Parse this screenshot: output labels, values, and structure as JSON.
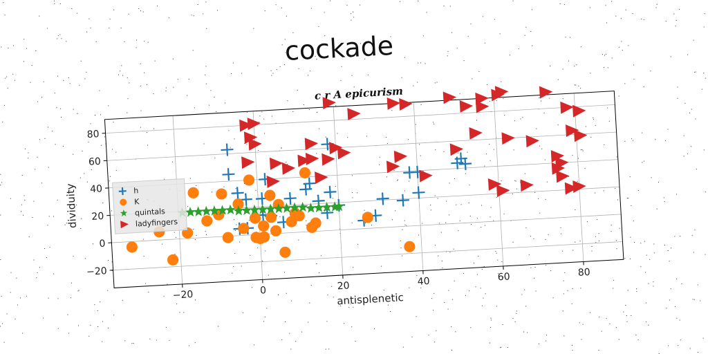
{
  "title": "cockade",
  "chart_data": {
    "type": "scatter",
    "subtitle": "c r A epicurism",
    "xlabel": "antisplenetic",
    "ylabel": "dividuity",
    "xlim": [
      -37,
      90
    ],
    "ylim": [
      -33,
      90
    ],
    "xticks": [
      -20,
      0,
      20,
      40,
      60,
      80
    ],
    "yticks": [
      -20,
      0,
      20,
      40,
      60,
      80
    ],
    "grid": true,
    "legend_position": "center-left",
    "series": [
      {
        "name": "h",
        "marker": "plus",
        "color": "#1f77b4",
        "points": [
          [
            -7,
            63
          ],
          [
            -7,
            45
          ],
          [
            18,
            63
          ],
          [
            2,
            40
          ],
          [
            1,
            26
          ],
          [
            -5,
            31
          ],
          [
            -3,
            26
          ],
          [
            12,
            31
          ],
          [
            8,
            25
          ],
          [
            13,
            35
          ],
          [
            18,
            28
          ],
          [
            15,
            22
          ],
          [
            17,
            13
          ],
          [
            26,
            6
          ],
          [
            29,
            9
          ],
          [
            20,
            18
          ],
          [
            31,
            21
          ],
          [
            36,
            19
          ],
          [
            38,
            39
          ],
          [
            40,
            39
          ],
          [
            40,
            24
          ],
          [
            50,
            44
          ],
          [
            52,
            43
          ],
          [
            51,
            47
          ],
          [
            -5,
            5
          ],
          [
            -3,
            5
          ],
          [
            1,
            14
          ],
          [
            3,
            13
          ],
          [
            6,
            8
          ]
        ]
      },
      {
        "name": "K",
        "marker": "circle",
        "color": "#ff7f0e",
        "points": [
          [
            -32,
            -4
          ],
          [
            -25,
            6
          ],
          [
            -22,
            -15
          ],
          [
            -18,
            4
          ],
          [
            -16,
            33
          ],
          [
            -13,
            12
          ],
          [
            -10,
            16
          ],
          [
            -9,
            31
          ],
          [
            -8,
            -1
          ],
          [
            -5,
            23
          ],
          [
            -4,
            5
          ],
          [
            -2,
            40
          ],
          [
            -1,
            12
          ],
          [
            0,
            -3
          ],
          [
            1,
            6
          ],
          [
            1,
            -2
          ],
          [
            3,
            12
          ],
          [
            3,
            28
          ],
          [
            4,
            2
          ],
          [
            5,
            21
          ],
          [
            6,
            -14
          ],
          [
            8,
            8
          ],
          [
            9,
            14
          ],
          [
            12,
            43
          ],
          [
            13,
            3
          ],
          [
            14,
            6
          ],
          [
            27,
            8
          ],
          [
            37,
            -15
          ],
          [
            -1,
            -2
          ],
          [
            10,
            12
          ]
        ]
      },
      {
        "name": "quintals",
        "marker": "star",
        "color": "#2ca02c",
        "points": [
          [
            -19,
            19
          ],
          [
            -17,
            19
          ],
          [
            -15,
            19
          ],
          [
            -13,
            19
          ],
          [
            -11,
            19
          ],
          [
            -9,
            19
          ],
          [
            -7,
            19
          ],
          [
            -5,
            18
          ],
          [
            -3,
            18
          ],
          [
            -1,
            18
          ],
          [
            1,
            18
          ],
          [
            3,
            18
          ],
          [
            5,
            18
          ],
          [
            7,
            18
          ],
          [
            9,
            18
          ],
          [
            11,
            18
          ],
          [
            13,
            17
          ],
          [
            15,
            17
          ],
          [
            17,
            17
          ],
          [
            19,
            17
          ],
          [
            20,
            17
          ]
        ]
      },
      {
        "name": "ladyfingers",
        "marker": "triangle-right",
        "color": "#d62728",
        "points": [
          [
            -2,
            80
          ],
          [
            0,
            81
          ],
          [
            -1,
            71
          ],
          [
            0,
            66
          ],
          [
            -2,
            53
          ],
          [
            4,
            38
          ],
          [
            5,
            51
          ],
          [
            8,
            47
          ],
          [
            12,
            52
          ],
          [
            14,
            64
          ],
          [
            14,
            53
          ],
          [
            18,
            52
          ],
          [
            20,
            60
          ],
          [
            22,
            56
          ],
          [
            16,
            39
          ],
          [
            25,
            84
          ],
          [
            19,
            93
          ],
          [
            35,
            90
          ],
          [
            38,
            89
          ],
          [
            36,
            51
          ],
          [
            34,
            44
          ],
          [
            42,
            36
          ],
          [
            49,
            92
          ],
          [
            53,
            85
          ],
          [
            57,
            84
          ],
          [
            57,
            90
          ],
          [
            61,
            92
          ],
          [
            62,
            94
          ],
          [
            55,
            65
          ],
          [
            50,
            54
          ],
          [
            69,
            57
          ],
          [
            63,
            60
          ],
          [
            73,
            92
          ],
          [
            78,
            80
          ],
          [
            79,
            63
          ],
          [
            81,
            77
          ],
          [
            81,
            59
          ],
          [
            75,
            45
          ],
          [
            75,
            36
          ],
          [
            76,
            40
          ],
          [
            59,
            27
          ],
          [
            61,
            22
          ],
          [
            67,
            25
          ],
          [
            78,
            21
          ],
          [
            80,
            22
          ],
          [
            76,
            30
          ]
        ]
      }
    ]
  }
}
